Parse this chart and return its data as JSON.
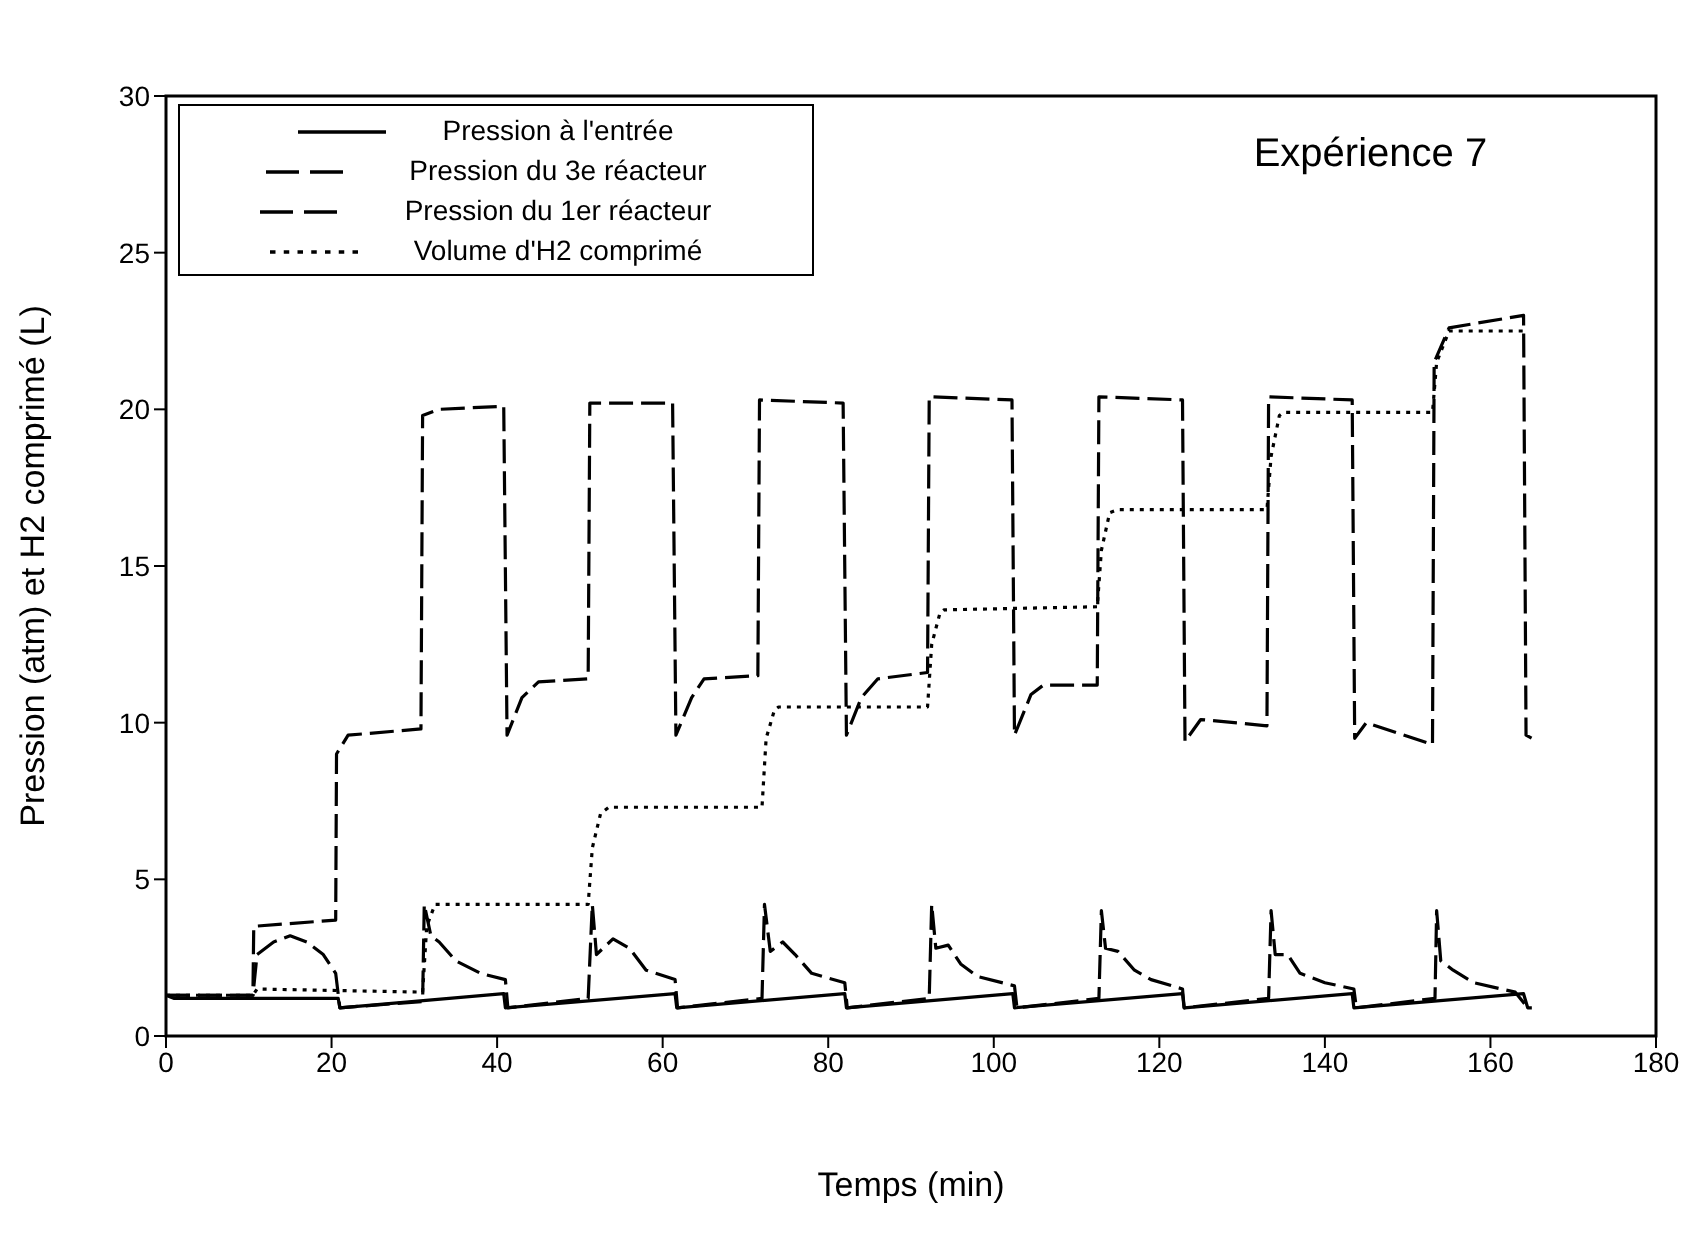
{
  "chart_data": {
    "type": "line",
    "xlabel": "Temps (min)",
    "ylabel": "Pression (atm) et H2 comprimé (L)",
    "annotations": [
      "Expérience 7"
    ],
    "xlim": [
      0,
      180
    ],
    "xticks": [
      0,
      20,
      40,
      60,
      80,
      100,
      120,
      140,
      160,
      180
    ],
    "ylim": [
      0,
      30
    ],
    "yticks": [
      0,
      5,
      10,
      15,
      20,
      25,
      30
    ],
    "grid": false,
    "legend": "top left",
    "marker": "none",
    "series": [
      {
        "name": "Pression à l'entrée",
        "color": "#000000",
        "line_style": "solid",
        "x": [
          0,
          1,
          20.8,
          21,
          40.8,
          41,
          61.5,
          61.7,
          82,
          82.2,
          102.3,
          102.5,
          122.8,
          123,
          143.3,
          143.5,
          164,
          164.5,
          165
        ],
        "values": [
          1.3,
          1.2,
          1.2,
          0.9,
          1.35,
          0.9,
          1.35,
          0.9,
          1.35,
          0.9,
          1.35,
          0.9,
          1.35,
          0.9,
          1.35,
          0.9,
          1.35,
          0.9,
          0.9
        ]
      },
      {
        "name": "Pression du 3e réacteur",
        "color": "#000000",
        "line_style": "dashed",
        "x": [
          0,
          10.5,
          10.6,
          20.5,
          20.6,
          22,
          30.8,
          31,
          33,
          40.8,
          41.2,
          43,
          45,
          51,
          51.2,
          61.2,
          61.6,
          63.5,
          65,
          71.5,
          71.7,
          81.8,
          82.2,
          84,
          86,
          92,
          92.2,
          102.2,
          102.5,
          104.5,
          106,
          112.5,
          112.7,
          122.8,
          123.1,
          125,
          133,
          133.2,
          143.3,
          143.6,
          145,
          153,
          153.2,
          155,
          164,
          164.3,
          165
        ],
        "values": [
          1.3,
          1.3,
          3.5,
          3.7,
          9.0,
          9.6,
          9.8,
          19.8,
          20.0,
          20.1,
          9.6,
          10.8,
          11.3,
          11.4,
          20.2,
          20.2,
          9.6,
          10.8,
          11.4,
          11.5,
          20.3,
          20.2,
          9.6,
          10.8,
          11.4,
          11.6,
          20.4,
          20.3,
          9.6,
          10.9,
          11.2,
          11.2,
          20.4,
          20.3,
          9.4,
          10.1,
          9.9,
          20.4,
          20.3,
          9.5,
          10.0,
          9.3,
          21.5,
          22.6,
          23.0,
          9.6,
          9.5
        ]
      },
      {
        "name": "Pression du 1er réacteur",
        "color": "#000000",
        "line_style": "dashed",
        "x": [
          0,
          10.5,
          11,
          13,
          15,
          17,
          19,
          20.5,
          21,
          31,
          31.2,
          32,
          33,
          35,
          38,
          41,
          41.3,
          51,
          51.5,
          52,
          54,
          56,
          58,
          61.5,
          61.8,
          72,
          72.3,
          73,
          74.5,
          76,
          78,
          82,
          82.3,
          92.2,
          92.5,
          93,
          94.5,
          96,
          98,
          102.5,
          102.8,
          112.7,
          113,
          113.5,
          115,
          117,
          119,
          122.8,
          123,
          133.2,
          133.5,
          134,
          135.5,
          137,
          140,
          143.5,
          143.8,
          153.3,
          153.5,
          154,
          155.5,
          158,
          163,
          164.5
        ],
        "values": [
          1.3,
          1.3,
          2.6,
          3.0,
          3.2,
          3.0,
          2.6,
          2.0,
          0.9,
          1.1,
          4.2,
          3.2,
          3.0,
          2.4,
          2.0,
          1.8,
          0.9,
          1.2,
          4.2,
          2.6,
          3.1,
          2.8,
          2.1,
          1.8,
          0.9,
          1.2,
          4.2,
          2.7,
          3.0,
          2.6,
          2.0,
          1.7,
          0.9,
          1.2,
          4.2,
          2.8,
          2.9,
          2.3,
          1.9,
          1.6,
          0.9,
          1.2,
          4.0,
          2.8,
          2.7,
          2.1,
          1.8,
          1.5,
          0.9,
          1.2,
          4.0,
          2.6,
          2.6,
          2.0,
          1.7,
          1.5,
          0.9,
          1.2,
          4.0,
          2.4,
          2.1,
          1.7,
          1.4,
          0.9
        ]
      },
      {
        "name": "Volume d'H2 comprimé",
        "color": "#000000",
        "line_style": "dotted",
        "x": [
          0,
          10.5,
          11,
          31,
          31.5,
          32.5,
          51,
          51.5,
          52.5,
          53.5,
          72,
          72.5,
          73.5,
          74,
          92,
          92.5,
          93.5,
          94,
          112.5,
          113,
          114,
          115,
          133,
          133.5,
          134.5,
          135,
          153,
          153.5,
          155,
          164
        ],
        "values": [
          1.3,
          1.3,
          1.5,
          1.4,
          3.5,
          4.2,
          4.2,
          6.0,
          7.1,
          7.3,
          7.3,
          9.5,
          10.4,
          10.5,
          10.5,
          12.5,
          13.5,
          13.6,
          13.7,
          15.5,
          16.7,
          16.8,
          16.8,
          18.5,
          19.8,
          19.9,
          19.9,
          21.5,
          22.5,
          22.5
        ]
      }
    ]
  }
}
